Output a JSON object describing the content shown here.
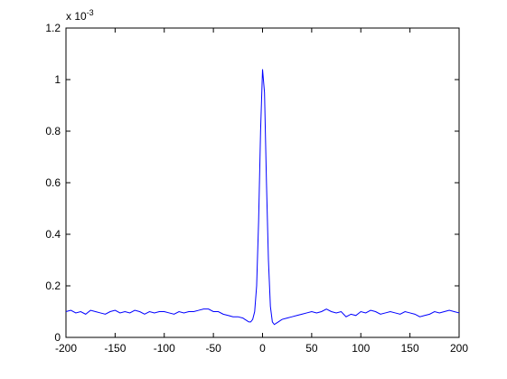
{
  "chart_data": {
    "type": "line",
    "y_multiplier": {
      "base": "x 10",
      "exponent": "-3"
    },
    "x": [
      -200,
      -195,
      -190,
      -185,
      -180,
      -175,
      -170,
      -165,
      -160,
      -155,
      -150,
      -145,
      -140,
      -135,
      -130,
      -125,
      -120,
      -115,
      -110,
      -105,
      -100,
      -95,
      -90,
      -85,
      -80,
      -75,
      -70,
      -65,
      -60,
      -55,
      -50,
      -45,
      -40,
      -35,
      -30,
      -25,
      -20,
      -18,
      -16,
      -14,
      -12,
      -10,
      -8,
      -6,
      -4,
      -2,
      0,
      2,
      4,
      6,
      8,
      10,
      12,
      14,
      16,
      18,
      20,
      25,
      30,
      35,
      40,
      45,
      50,
      55,
      60,
      65,
      70,
      75,
      80,
      85,
      90,
      95,
      100,
      105,
      110,
      115,
      120,
      125,
      130,
      135,
      140,
      145,
      150,
      155,
      160,
      165,
      170,
      175,
      180,
      185,
      190,
      195,
      200
    ],
    "series": [
      {
        "color": "#0000ff",
        "values": [
          0.1,
          0.105,
          0.095,
          0.1,
          0.09,
          0.105,
          0.1,
          0.095,
          0.09,
          0.1,
          0.105,
          0.095,
          0.1,
          0.095,
          0.105,
          0.1,
          0.09,
          0.1,
          0.095,
          0.1,
          0.1,
          0.095,
          0.09,
          0.1,
          0.095,
          0.1,
          0.1,
          0.105,
          0.11,
          0.11,
          0.1,
          0.1,
          0.09,
          0.085,
          0.08,
          0.08,
          0.075,
          0.07,
          0.065,
          0.06,
          0.06,
          0.07,
          0.1,
          0.2,
          0.45,
          0.8,
          1.04,
          0.95,
          0.6,
          0.3,
          0.12,
          0.06,
          0.05,
          0.055,
          0.06,
          0.065,
          0.07,
          0.075,
          0.08,
          0.085,
          0.09,
          0.095,
          0.1,
          0.095,
          0.1,
          0.11,
          0.1,
          0.095,
          0.1,
          0.08,
          0.09,
          0.085,
          0.1,
          0.095,
          0.105,
          0.1,
          0.09,
          0.095,
          0.1,
          0.095,
          0.09,
          0.1,
          0.095,
          0.09,
          0.08,
          0.085,
          0.09,
          0.1,
          0.095,
          0.1,
          0.105,
          0.1,
          0.095
        ]
      }
    ],
    "xlim": [
      -200,
      200
    ],
    "xticks": [
      -200,
      -150,
      -100,
      -50,
      0,
      50,
      100,
      150,
      200
    ],
    "ylim": [
      0,
      1.2
    ],
    "yticks": [
      0,
      0.2,
      0.4,
      0.6,
      0.8,
      1,
      1.2
    ],
    "grid": false
  }
}
